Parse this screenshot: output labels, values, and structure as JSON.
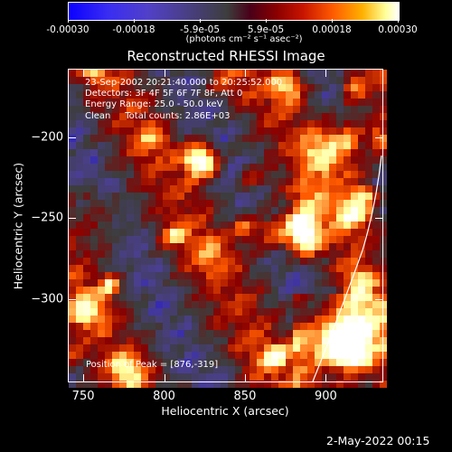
{
  "colorbar": {
    "ticks": [
      "-0.00030",
      "-0.00018",
      "-5.9e-05",
      "5.9e-05",
      "0.00018",
      "0.00030"
    ],
    "unit": "(photons cm⁻² s⁻¹ asec⁻²)"
  },
  "chart_data": {
    "type": "heatmap",
    "title": "Reconstructed RHESSI Image",
    "xlabel": "Heliocentric X (arcsec)",
    "ylabel": "Heliocentric Y (arcsec)",
    "xlim": [
      741,
      935
    ],
    "ylim": [
      -351,
      -158
    ],
    "xticks": [
      "750",
      "800",
      "850",
      "900"
    ],
    "yticks": [
      "-200",
      "-250",
      "-300"
    ],
    "value_range": [
      -0.0003,
      0.0003
    ],
    "peak": {
      "x": 876,
      "y": -319
    },
    "annotations": {
      "time": "23-Sep-2002 20:21:40.000 to 20:25:52.000",
      "detectors": "Detectors: 3F 4F 5F 6F 7F 8F, Att 0",
      "energy": "Energy Range: 25.0 - 50.0 keV",
      "method": "Clean     Total counts: 2.86E+03",
      "peak_label": "Position of Peak = [876,-319]"
    },
    "colormap": [
      "#0b00ff",
      "#4a3f8f",
      "#3d3d3d",
      "#8a0000",
      "#ff5a00",
      "#ffff9a",
      "#ffffff"
    ]
  },
  "footer": {
    "timestamp": "2-May-2022 00:15"
  }
}
